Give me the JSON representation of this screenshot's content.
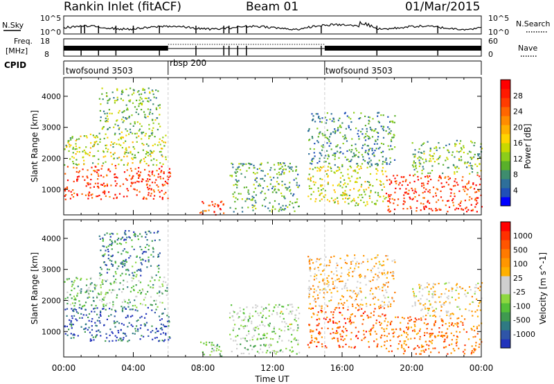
{
  "header": {
    "title": "Rankin Inlet (fitACF)",
    "beam": "Beam 01",
    "date": "01/Mar/2015"
  },
  "top_panels": {
    "nsky_label": "N.Sky",
    "nsearch_label": "N.Search",
    "freq_label_line1": "Freq.",
    "freq_label_line2": "[MHz]",
    "nave_label": "Nave",
    "cpid_label": "CPID",
    "noise_ticks": [
      "10^5",
      "10^0"
    ],
    "freq_ticks": [
      "18",
      "8"
    ],
    "nave_ticks": [
      "60",
      "0"
    ],
    "cpid_segments": [
      {
        "name": "twofsound 3503",
        "start": 0,
        "end": 6
      },
      {
        "name": "rbsp 200",
        "start": 6,
        "end": 15
      },
      {
        "name": "twofsound 3503",
        "start": 15,
        "end": 24
      }
    ]
  },
  "axes": {
    "x_label": "Time UT",
    "y_label": "Slant Range [km]"
  },
  "chart_data": [
    {
      "type": "heatmap",
      "title": "",
      "xlabel": "Time UT",
      "ylabel": "Slant Range [km]",
      "xlim": [
        0,
        24
      ],
      "ylim": [
        180,
        4600
      ],
      "x_ticks": [
        "00:00",
        "04:00",
        "08:00",
        "12:00",
        "16:00",
        "20:00",
        "00:00"
      ],
      "y_ticks": [
        1000,
        2000,
        3000,
        4000
      ],
      "colorbar": {
        "label": "Power [dB]",
        "ticks": [
          "28",
          "24",
          "20",
          "16",
          "12",
          "8",
          "4"
        ],
        "colors": [
          "#0000ff",
          "#1f4fb8",
          "#2e6f9a",
          "#3e8d6e",
          "#59b02a",
          "#8ccd1a",
          "#c8d800",
          "#ffd400",
          "#ffb000",
          "#ff8c00",
          "#ff6600",
          "#ff3c00",
          "#ff1a00",
          "#ff0000"
        ]
      },
      "regions": [
        {
          "t": [
            0,
            6.1
          ],
          "r": [
            700,
            1800
          ],
          "level": 0.85
        },
        {
          "t": [
            0,
            6
          ],
          "r": [
            1800,
            2800
          ],
          "level": 0.45
        },
        {
          "t": [
            2,
            5.5
          ],
          "r": [
            2800,
            4300
          ],
          "level": 0.35
        },
        {
          "t": [
            7.8,
            9.3
          ],
          "r": [
            200,
            700
          ],
          "level": 0.85
        },
        {
          "t": [
            9.5,
            13.5
          ],
          "r": [
            300,
            1900
          ],
          "level": 0.3
        },
        {
          "t": [
            14,
            18.5
          ],
          "r": [
            500,
            1800
          ],
          "level": 0.45
        },
        {
          "t": [
            14,
            19
          ],
          "r": [
            1800,
            3500
          ],
          "level": 0.25
        },
        {
          "t": [
            18.5,
            24
          ],
          "r": [
            300,
            1500
          ],
          "level": 0.85
        },
        {
          "t": [
            20,
            24
          ],
          "r": [
            1500,
            2600
          ],
          "level": 0.35
        }
      ]
    },
    {
      "type": "heatmap",
      "title": "",
      "xlabel": "Time UT",
      "ylabel": "Slant Range [km]",
      "xlim": [
        0,
        24
      ],
      "ylim": [
        180,
        4600
      ],
      "x_ticks": [
        "00:00",
        "04:00",
        "08:00",
        "12:00",
        "16:00",
        "20:00",
        "00:00"
      ],
      "y_ticks": [
        1000,
        2000,
        3000,
        4000
      ],
      "colorbar": {
        "label": "Velocity [m s^-1]",
        "ticks": [
          "1000",
          "500",
          "100",
          "25",
          "-25",
          "-100",
          "-500",
          "-1000"
        ],
        "colors": [
          "#2233bb",
          "#2f55a8",
          "#2f7a83",
          "#3f9a50",
          "#55c038",
          "#8ed840",
          "#cfcfcf",
          "#cfcfcf",
          "#ffb000",
          "#ff9600",
          "#ff7a00",
          "#ff5500",
          "#ff3000",
          "#ff0000"
        ]
      },
      "regions": [
        {
          "t": [
            0,
            6.1
          ],
          "r": [
            700,
            1800
          ],
          "level": 0.1
        },
        {
          "t": [
            0,
            6
          ],
          "r": [
            1800,
            2800
          ],
          "level": 0.35
        },
        {
          "t": [
            2,
            5.5
          ],
          "r": [
            2800,
            4300
          ],
          "level": 0.2
        },
        {
          "t": [
            7.8,
            9.3
          ],
          "r": [
            200,
            700
          ],
          "level": 0.35
        },
        {
          "t": [
            9.5,
            13.5
          ],
          "r": [
            300,
            1900
          ],
          "level": 0.4
        },
        {
          "t": [
            14,
            18.5
          ],
          "r": [
            500,
            1800
          ],
          "level": 0.8
        },
        {
          "t": [
            14,
            19
          ],
          "r": [
            1800,
            3500
          ],
          "level": 0.6
        },
        {
          "t": [
            18.5,
            24
          ],
          "r": [
            300,
            1500
          ],
          "level": 0.75
        },
        {
          "t": [
            20,
            24
          ],
          "r": [
            1500,
            2600
          ],
          "level": 0.55
        }
      ]
    }
  ]
}
